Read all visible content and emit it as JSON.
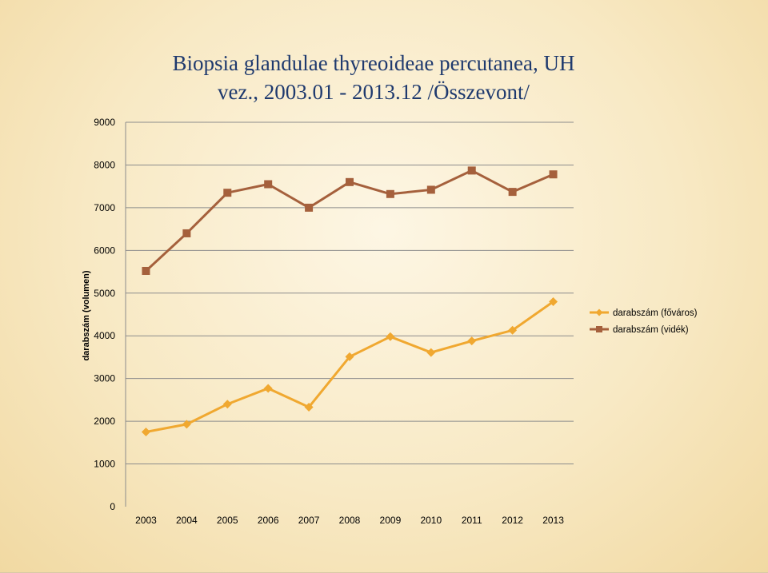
{
  "chart_data": {
    "type": "line",
    "title": [
      "Biopsia glandulae thyreoideae percutanea, UH",
      "vez., 2003.01 - 2013.12 /Összevont/"
    ],
    "xlabel": "",
    "ylabel": "darabszám (volumen)",
    "categories": [
      "2003",
      "2004",
      "2005",
      "2006",
      "2007",
      "2008",
      "2009",
      "2010",
      "2011",
      "2012",
      "2013"
    ],
    "ylim": [
      0,
      9000
    ],
    "yticks": [
      "0",
      "1000",
      "2000",
      "3000",
      "4000",
      "5000",
      "6000",
      "7000",
      "8000",
      "9000"
    ],
    "grid": true,
    "legend_position": "right",
    "series": [
      {
        "name": "darabszám (főváros)",
        "color": "#f0a830",
        "marker": "diamond",
        "values": [
          1750,
          1930,
          2400,
          2770,
          2330,
          3510,
          3980,
          3610,
          3880,
          4130,
          4800
        ]
      },
      {
        "name": "darabszám (vidék)",
        "color": "#a5603c",
        "marker": "square",
        "values": [
          5520,
          6400,
          7350,
          7550,
          7000,
          7600,
          7320,
          7420,
          7870,
          7370,
          7780
        ]
      }
    ]
  }
}
